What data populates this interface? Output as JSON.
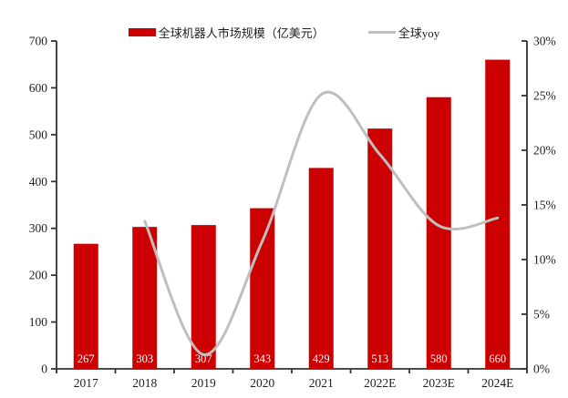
{
  "colors": {
    "bar": "#CC0000",
    "line": "#BFBFBF",
    "axis_line": "#333333",
    "tick_label": "#1f1f1f",
    "bar_value_label": "#FFFFFF",
    "background": "#FFFFFF"
  },
  "chart_data": {
    "type": "bar+line combo",
    "title": "",
    "grid": false,
    "legend_position": "top",
    "categories": [
      "2017",
      "2018",
      "2019",
      "2020",
      "2021",
      "2022E",
      "2023E",
      "2024E"
    ],
    "series": [
      {
        "name": "全球机器人市场规模（亿美元）",
        "type": "bar",
        "yaxis": "left",
        "color": "#CC0000",
        "values": [
          267,
          303,
          307,
          343,
          429,
          513,
          580,
          660
        ],
        "data_labels": [
          "267",
          "303",
          "307",
          "343",
          "429",
          "513",
          "580",
          "660"
        ]
      },
      {
        "name": "全球yoy",
        "type": "line",
        "yaxis": "right",
        "color": "#BFBFBF",
        "smooth": true,
        "values_percent": [
          null,
          13.5,
          1.3,
          11.7,
          25.1,
          19.6,
          13.1,
          13.8
        ]
      }
    ],
    "left_axis": {
      "min": 0,
      "max": 700,
      "tick_step": 100,
      "tick_labels": [
        "0",
        "100",
        "200",
        "300",
        "400",
        "500",
        "600",
        "700"
      ]
    },
    "right_axis": {
      "min": 0,
      "max": 30,
      "tick_step": 5,
      "tick_labels": [
        "0%",
        "5%",
        "10%",
        "15%",
        "20%",
        "25%",
        "30%"
      ]
    }
  }
}
